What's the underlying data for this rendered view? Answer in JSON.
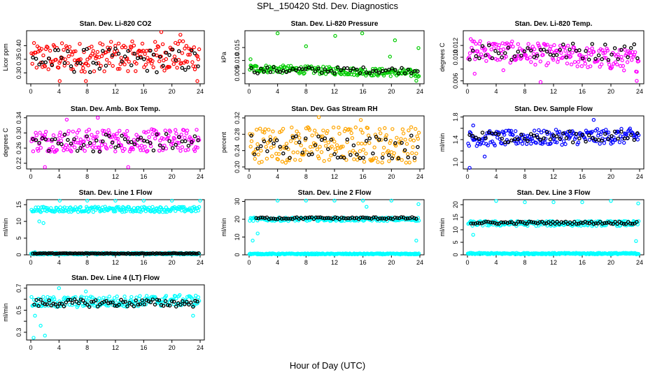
{
  "page": {
    "title": "SPL_150420  Std. Dev. Diagnostics",
    "xlabel": "Hour of Day (UTC)"
  },
  "chart_data": [
    {
      "type": "scatter",
      "title": "Stan. Dev. Li-820 CO2",
      "ylabel": "Licor ppm",
      "color": "#ff0000",
      "xlim": [
        0,
        24
      ],
      "xticks": [
        0,
        4,
        8,
        12,
        16,
        20,
        24
      ],
      "ylim": [
        0.26,
        0.455
      ],
      "yticks": [
        0.3,
        0.35,
        0.4
      ],
      "ytick_labels": [
        "0.30",
        "0.35",
        "0.40"
      ],
      "band": {
        "lo": 0.3,
        "hi": 0.41,
        "trend": 0.01
      },
      "overlay": {
        "lo": 0.3,
        "hi": 0.39
      },
      "outliers": [
        [
          4.1,
          0.27
        ],
        [
          7.8,
          0.27
        ],
        [
          18.5,
          0.45
        ],
        [
          21.2,
          0.44
        ],
        [
          23.6,
          0.27
        ]
      ]
    },
    {
      "type": "scatter",
      "title": "Stan. Dev. Li-820 Pressure",
      "ylabel": "kPa",
      "color": "#00cc00",
      "xlim": [
        0,
        24
      ],
      "xticks": [
        0,
        4,
        8,
        12,
        16,
        20,
        24
      ],
      "ylim": [
        0.001,
        0.0215
      ],
      "yticks": [
        0.005,
        0.01,
        0.015
      ],
      "ytick_labels": [
        "0.005",
        "0.010",
        "0.015"
      ],
      "band": {
        "lo": 0.0055,
        "hi": 0.0085,
        "trend": -0.002
      },
      "overlay": {
        "lo": 0.005,
        "hi": 0.0075
      },
      "outliers": [
        [
          0.2,
          0.0105
        ],
        [
          4.0,
          0.0205
        ],
        [
          8.0,
          0.0155
        ],
        [
          12.1,
          0.0195
        ],
        [
          15.9,
          0.0205
        ],
        [
          19.8,
          0.0115
        ],
        [
          20.5,
          0.0178
        ],
        [
          23.8,
          0.0148
        ],
        [
          23.5,
          0.0022
        ]
      ]
    },
    {
      "type": "scatter",
      "title": "Stan. Dev. Li-820 Temp.",
      "ylabel": "degrees C",
      "color": "#ff00ff",
      "xlim": [
        0,
        24
      ],
      "xticks": [
        0,
        4,
        8,
        12,
        16,
        20,
        24
      ],
      "ylim": [
        0.0055,
        0.0145
      ],
      "yticks": [
        0.006,
        0.008,
        0.01,
        0.012
      ],
      "ytick_labels": [
        "0.006",
        "",
        "0.010",
        "0.012"
      ],
      "band": {
        "lo": 0.0095,
        "hi": 0.0132,
        "trend": -0.002
      },
      "overlay": {
        "lo": 0.0095,
        "hi": 0.0125
      },
      "outliers": [
        [
          1.0,
          0.0072
        ],
        [
          5.0,
          0.0078
        ],
        [
          10.2,
          0.0058
        ],
        [
          23.6,
          0.006
        ]
      ]
    },
    {
      "type": "scatter",
      "title": "Stan. Dev. Amb. Box Temp.",
      "ylabel": "degrees C",
      "color": "#ff00ff",
      "xlim": [
        0,
        24
      ],
      "xticks": [
        0,
        4,
        8,
        12,
        16,
        20,
        24
      ],
      "ylim": [
        0.205,
        0.345
      ],
      "yticks": [
        0.22,
        0.26,
        0.3,
        0.34
      ],
      "ytick_labels": [
        "0.22",
        "0.26",
        "0.30",
        "0.34"
      ],
      "band": {
        "lo": 0.25,
        "hi": 0.31,
        "trend": 0
      },
      "overlay": {
        "lo": 0.25,
        "hi": 0.3
      },
      "outliers": [
        [
          2.0,
          0.21
        ],
        [
          5.1,
          0.335
        ],
        [
          9.5,
          0.34
        ],
        [
          13.8,
          0.21
        ]
      ]
    },
    {
      "type": "scatter",
      "title": "Stan. Dev. Gas Stream RH",
      "ylabel": "percent",
      "color": "#ffa500",
      "xlim": [
        0,
        24
      ],
      "xticks": [
        0,
        4,
        8,
        12,
        16,
        20,
        24
      ],
      "ylim": [
        0.195,
        0.325
      ],
      "yticks": [
        0.2,
        0.24,
        0.28,
        0.32
      ],
      "ytick_labels": [
        "0.20",
        "0.24",
        "0.28",
        "0.32"
      ],
      "band": {
        "lo": 0.21,
        "hi": 0.3,
        "trend": 0
      },
      "overlay": {
        "lo": 0.22,
        "hi": 0.28
      },
      "outliers": [
        [
          9.8,
          0.322
        ],
        [
          15.7,
          0.315
        ]
      ]
    },
    {
      "type": "scatter",
      "title": "Stan. Dev. Sample Flow",
      "ylabel": "ml/min",
      "color": "#0000ff",
      "xlim": [
        0,
        24
      ],
      "xticks": [
        0,
        4,
        8,
        12,
        16,
        20,
        24
      ],
      "ylim": [
        0.88,
        1.82
      ],
      "yticks": [
        1.0,
        1.2,
        1.4,
        1.6,
        1.8
      ],
      "ytick_labels": [
        "1.0",
        "",
        "1.4",
        "",
        "1.8"
      ],
      "band": {
        "lo": 1.28,
        "hi": 1.55,
        "trend": 0.05
      },
      "overlay": {
        "lo": 1.35,
        "hi": 1.55
      },
      "outliers": [
        [
          0.3,
          0.9
        ],
        [
          0.8,
          1.65
        ],
        [
          2.4,
          1.1
        ],
        [
          17.6,
          1.75
        ]
      ]
    },
    {
      "type": "scatter",
      "title": "Stan. Dev. Line 1 Flow",
      "ylabel": "ml/min",
      "color": "#00ffff",
      "xlim": [
        0,
        24
      ],
      "xticks": [
        0,
        4,
        8,
        12,
        16,
        20,
        24
      ],
      "ylim": [
        0,
        16.5
      ],
      "yticks": [
        0,
        5,
        10,
        15
      ],
      "ytick_labels": [
        "0",
        "5",
        "10",
        "15"
      ],
      "band": {
        "lo": 12.8,
        "hi": 14.4,
        "trend": 0
      },
      "low_band": {
        "lo": 0.1,
        "hi": 0.6
      },
      "overlay": {
        "lo": 0.3,
        "hi": 0.5,
        "step": 0.25
      },
      "outliers": [
        [
          4.1,
          16.2
        ],
        [
          8.0,
          16.2
        ],
        [
          12.0,
          16.2
        ],
        [
          16.0,
          16.2
        ],
        [
          20.0,
          16.2
        ],
        [
          24.0,
          16.2
        ],
        [
          1.2,
          10.0
        ],
        [
          1.8,
          9.5
        ],
        [
          0.6,
          0.8
        ]
      ]
    },
    {
      "type": "scatter",
      "title": "Stan. Dev. Line 2 Flow",
      "ylabel": "ml/min",
      "color": "#00ffff",
      "xlim": [
        0,
        24
      ],
      "xticks": [
        0,
        4,
        8,
        12,
        16,
        20,
        24
      ],
      "ylim": [
        0,
        31
      ],
      "yticks": [
        0,
        10,
        20,
        30
      ],
      "ytick_labels": [
        "0",
        "10",
        "20",
        "30"
      ],
      "band": {
        "lo": 19.0,
        "hi": 21.0,
        "trend": 0
      },
      "low_band": {
        "lo": 0.2,
        "hi": 0.8
      },
      "overlay": {
        "lo": 20.0,
        "hi": 21.2,
        "step": 0.3,
        "start": 1.0
      },
      "outliers": [
        [
          4.0,
          30.5
        ],
        [
          8.0,
          30.5
        ],
        [
          12.0,
          30.5
        ],
        [
          16.0,
          30.5
        ],
        [
          20.0,
          30.5
        ],
        [
          23.8,
          28.5
        ],
        [
          0.5,
          8.0
        ],
        [
          1.2,
          12.0
        ],
        [
          16.5,
          27.0
        ],
        [
          23.5,
          8.0
        ]
      ]
    },
    {
      "type": "scatter",
      "title": "Stan. Dev. Line 3 Flow",
      "ylabel": "ml/min",
      "color": "#00ffff",
      "xlim": [
        0,
        24
      ],
      "xticks": [
        0,
        4,
        8,
        12,
        16,
        20,
        24
      ],
      "ylim": [
        0,
        22
      ],
      "yticks": [
        0,
        5,
        10,
        15,
        20
      ],
      "ytick_labels": [
        "0",
        "5",
        "10",
        "15",
        "20"
      ],
      "band": {
        "lo": 11.5,
        "hi": 13.5,
        "trend": 0
      },
      "low_band": {
        "lo": 0.2,
        "hi": 0.8
      },
      "overlay": {
        "lo": 12.3,
        "hi": 13.3,
        "step": 0.3,
        "start": 0.5
      },
      "outliers": [
        [
          4.0,
          21.5
        ],
        [
          8.0,
          21.0
        ],
        [
          12.0,
          21.0
        ],
        [
          16.0,
          21.0
        ],
        [
          20.0,
          21.5
        ],
        [
          23.8,
          20.5
        ],
        [
          23.5,
          5.5
        ],
        [
          0.8,
          8.0
        ]
      ]
    },
    {
      "type": "scatter",
      "title": "Stan. Dev. Line 4 (LT) Flow",
      "ylabel": "ml/min",
      "color": "#00ffff",
      "xlim": [
        0,
        24
      ],
      "xticks": [
        0,
        4,
        8,
        12,
        16,
        20,
        24
      ],
      "ylim": [
        0.23,
        0.73
      ],
      "yticks": [
        0.3,
        0.4,
        0.5,
        0.6,
        0.7
      ],
      "ytick_labels": [
        "0.3",
        "",
        "0.5",
        "",
        "0.7"
      ],
      "band": {
        "lo": 0.52,
        "hi": 0.62,
        "trend": 0.02
      },
      "overlay": {
        "lo": 0.53,
        "hi": 0.6,
        "step": 0.3,
        "start": 0.5
      },
      "outliers": [
        [
          0.4,
          0.25
        ],
        [
          1.4,
          0.36
        ],
        [
          2.0,
          0.27
        ],
        [
          4.0,
          0.7
        ],
        [
          7.8,
          0.67
        ],
        [
          23.0,
          0.45
        ],
        [
          0.6,
          0.45
        ]
      ]
    }
  ]
}
